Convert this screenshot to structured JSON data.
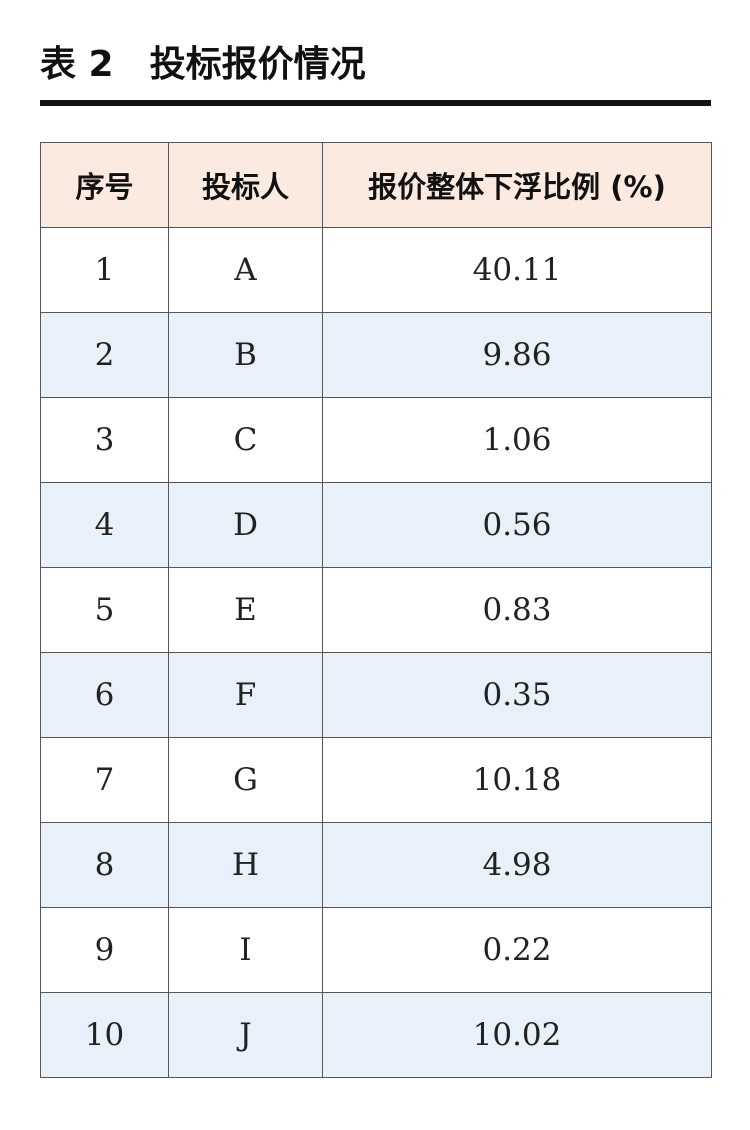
{
  "title": {
    "label": "表 2",
    "text": "投标报价情况"
  },
  "table": {
    "headers": [
      "序号",
      "投标人",
      "报价整体下浮比例 (%)"
    ],
    "rows": [
      [
        "1",
        "A",
        "40.11"
      ],
      [
        "2",
        "B",
        "9.86"
      ],
      [
        "3",
        "C",
        "1.06"
      ],
      [
        "4",
        "D",
        "0.56"
      ],
      [
        "5",
        "E",
        "0.83"
      ],
      [
        "6",
        "F",
        "0.35"
      ],
      [
        "7",
        "G",
        "10.18"
      ],
      [
        "8",
        "H",
        "4.98"
      ],
      [
        "9",
        "I",
        "0.22"
      ],
      [
        "10",
        "J",
        "10.02"
      ]
    ]
  },
  "colors": {
    "header_bg": "#fbeae0",
    "stripe_bg": "#e8f0fa",
    "rule": "#111111"
  }
}
